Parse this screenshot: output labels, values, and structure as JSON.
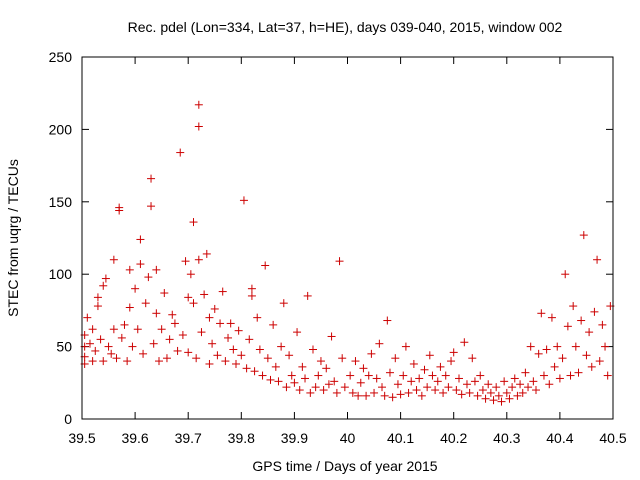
{
  "chart_data": {
    "type": "scatter",
    "title": "Rec. pdel (Lon=334, Lat=37, h=HE), days 039-040, 2015, window 002",
    "xlabel": "GPS time / Days of year 2015",
    "ylabel": "STEC from uqrg / TECUs",
    "xlim": [
      39.5,
      40.5
    ],
    "ylim": [
      0,
      250
    ],
    "xticks": [
      39.5,
      39.6,
      39.7,
      39.8,
      39.9,
      40,
      40.1,
      40.2,
      40.3,
      40.4,
      40.5
    ],
    "xtick_labels": [
      "39.5",
      "39.6",
      "39.7",
      "39.8",
      "39.9",
      "40",
      "40.1",
      "40.2",
      "40.3",
      "40.4",
      "40.5"
    ],
    "yticks": [
      0,
      50,
      100,
      150,
      200,
      250
    ],
    "ytick_labels": [
      "0",
      "50",
      "100",
      "150",
      "200",
      "250"
    ],
    "grid": false,
    "marker": "plus",
    "marker_color": "#cc0000",
    "series": [
      {
        "name": "STEC",
        "points": [
          [
            39.505,
            38
          ],
          [
            39.505,
            43
          ],
          [
            39.505,
            50
          ],
          [
            39.505,
            58
          ],
          [
            39.51,
            70
          ],
          [
            39.515,
            52
          ],
          [
            39.52,
            40
          ],
          [
            39.52,
            62
          ],
          [
            39.525,
            47
          ],
          [
            39.53,
            78
          ],
          [
            39.53,
            84
          ],
          [
            39.535,
            55
          ],
          [
            39.54,
            40
          ],
          [
            39.54,
            92
          ],
          [
            39.545,
            97
          ],
          [
            39.55,
            50
          ],
          [
            39.555,
            45
          ],
          [
            39.56,
            62
          ],
          [
            39.56,
            110
          ],
          [
            39.565,
            42
          ],
          [
            39.57,
            144
          ],
          [
            39.57,
            146
          ],
          [
            39.575,
            56
          ],
          [
            39.58,
            65
          ],
          [
            39.585,
            40
          ],
          [
            39.59,
            77
          ],
          [
            39.59,
            103
          ],
          [
            39.595,
            50
          ],
          [
            39.6,
            90
          ],
          [
            39.605,
            62
          ],
          [
            39.61,
            107
          ],
          [
            39.61,
            124
          ],
          [
            39.615,
            45
          ],
          [
            39.62,
            80
          ],
          [
            39.625,
            98
          ],
          [
            39.63,
            147
          ],
          [
            39.63,
            166
          ],
          [
            39.635,
            52
          ],
          [
            39.64,
            73
          ],
          [
            39.64,
            103
          ],
          [
            39.645,
            40
          ],
          [
            39.65,
            62
          ],
          [
            39.655,
            87
          ],
          [
            39.66,
            42
          ],
          [
            39.665,
            55
          ],
          [
            39.67,
            72
          ],
          [
            39.675,
            66
          ],
          [
            39.68,
            47
          ],
          [
            39.685,
            184
          ],
          [
            39.69,
            58
          ],
          [
            39.695,
            109
          ],
          [
            39.7,
            46
          ],
          [
            39.7,
            84
          ],
          [
            39.705,
            100
          ],
          [
            39.71,
            136
          ],
          [
            39.71,
            80
          ],
          [
            39.715,
            42
          ],
          [
            39.72,
            110
          ],
          [
            39.72,
            202
          ],
          [
            39.72,
            217
          ],
          [
            39.725,
            60
          ],
          [
            39.73,
            86
          ],
          [
            39.735,
            114
          ],
          [
            39.74,
            38
          ],
          [
            39.74,
            70
          ],
          [
            39.745,
            52
          ],
          [
            39.75,
            76
          ],
          [
            39.755,
            44
          ],
          [
            39.76,
            66
          ],
          [
            39.765,
            88
          ],
          [
            39.77,
            40
          ],
          [
            39.775,
            56
          ],
          [
            39.78,
            66
          ],
          [
            39.785,
            48
          ],
          [
            39.79,
            38
          ],
          [
            39.795,
            61
          ],
          [
            39.8,
            44
          ],
          [
            39.805,
            151
          ],
          [
            39.81,
            35
          ],
          [
            39.815,
            55
          ],
          [
            39.82,
            90
          ],
          [
            39.82,
            85
          ],
          [
            39.825,
            33
          ],
          [
            39.83,
            70
          ],
          [
            39.835,
            48
          ],
          [
            39.84,
            30
          ],
          [
            39.845,
            106
          ],
          [
            39.85,
            42
          ],
          [
            39.855,
            27
          ],
          [
            39.86,
            65
          ],
          [
            39.865,
            36
          ],
          [
            39.87,
            26
          ],
          [
            39.875,
            50
          ],
          [
            39.88,
            80
          ],
          [
            39.885,
            22
          ],
          [
            39.89,
            44
          ],
          [
            39.895,
            30
          ],
          [
            39.9,
            25
          ],
          [
            39.905,
            60
          ],
          [
            39.91,
            20
          ],
          [
            39.915,
            36
          ],
          [
            39.92,
            28
          ],
          [
            39.925,
            85
          ],
          [
            39.93,
            18
          ],
          [
            39.935,
            48
          ],
          [
            39.94,
            22
          ],
          [
            39.945,
            30
          ],
          [
            39.95,
            40
          ],
          [
            39.955,
            20
          ],
          [
            39.96,
            35
          ],
          [
            39.965,
            24
          ],
          [
            39.97,
            57
          ],
          [
            39.975,
            26
          ],
          [
            39.98,
            18
          ],
          [
            39.985,
            109
          ],
          [
            39.99,
            42
          ],
          [
            39.995,
            22
          ],
          [
            40.005,
            30
          ],
          [
            40.01,
            18
          ],
          [
            40.015,
            40
          ],
          [
            40.02,
            16
          ],
          [
            40.025,
            25
          ],
          [
            40.03,
            35
          ],
          [
            40.035,
            16
          ],
          [
            40.04,
            30
          ],
          [
            40.045,
            45
          ],
          [
            40.05,
            18
          ],
          [
            40.055,
            28
          ],
          [
            40.06,
            52
          ],
          [
            40.065,
            22
          ],
          [
            40.07,
            16
          ],
          [
            40.075,
            68
          ],
          [
            40.08,
            32
          ],
          [
            40.085,
            15
          ],
          [
            40.09,
            42
          ],
          [
            40.095,
            24
          ],
          [
            40.1,
            17
          ],
          [
            40.105,
            30
          ],
          [
            40.11,
            50
          ],
          [
            40.115,
            18
          ],
          [
            40.12,
            26
          ],
          [
            40.125,
            38
          ],
          [
            40.13,
            20
          ],
          [
            40.135,
            28
          ],
          [
            40.14,
            16
          ],
          [
            40.145,
            34
          ],
          [
            40.15,
            22
          ],
          [
            40.155,
            44
          ],
          [
            40.16,
            30
          ],
          [
            40.165,
            20
          ],
          [
            40.17,
            26
          ],
          [
            40.175,
            36
          ],
          [
            40.18,
            18
          ],
          [
            40.185,
            30
          ],
          [
            40.19,
            22
          ],
          [
            40.195,
            40
          ],
          [
            40.2,
            46
          ],
          [
            40.205,
            20
          ],
          [
            40.21,
            28
          ],
          [
            40.215,
            17
          ],
          [
            40.22,
            53
          ],
          [
            40.225,
            24
          ],
          [
            40.23,
            18
          ],
          [
            40.235,
            42
          ],
          [
            40.24,
            26
          ],
          [
            40.245,
            16
          ],
          [
            40.25,
            30
          ],
          [
            40.255,
            20
          ],
          [
            40.26,
            14
          ],
          [
            40.265,
            24
          ],
          [
            40.27,
            18
          ],
          [
            40.275,
            13
          ],
          [
            40.28,
            22
          ],
          [
            40.285,
            16
          ],
          [
            40.29,
            12
          ],
          [
            40.295,
            26
          ],
          [
            40.3,
            18
          ],
          [
            40.305,
            14
          ],
          [
            40.31,
            22
          ],
          [
            40.315,
            28
          ],
          [
            40.32,
            16
          ],
          [
            40.325,
            24
          ],
          [
            40.33,
            18
          ],
          [
            40.335,
            32
          ],
          [
            40.34,
            22
          ],
          [
            40.345,
            50
          ],
          [
            40.35,
            26
          ],
          [
            40.355,
            20
          ],
          [
            40.36,
            45
          ],
          [
            40.365,
            73
          ],
          [
            40.37,
            30
          ],
          [
            40.375,
            48
          ],
          [
            40.38,
            24
          ],
          [
            40.385,
            70
          ],
          [
            40.39,
            36
          ],
          [
            40.395,
            50
          ],
          [
            40.4,
            28
          ],
          [
            40.405,
            42
          ],
          [
            40.41,
            100
          ],
          [
            40.415,
            64
          ],
          [
            40.42,
            30
          ],
          [
            40.425,
            78
          ],
          [
            40.43,
            50
          ],
          [
            40.435,
            32
          ],
          [
            40.44,
            68
          ],
          [
            40.445,
            127
          ],
          [
            40.45,
            44
          ],
          [
            40.455,
            60
          ],
          [
            40.46,
            36
          ],
          [
            40.465,
            74
          ],
          [
            40.47,
            110
          ],
          [
            40.475,
            40
          ],
          [
            40.48,
            65
          ],
          [
            40.485,
            50
          ],
          [
            40.49,
            30
          ],
          [
            40.495,
            78
          ]
        ]
      }
    ]
  }
}
